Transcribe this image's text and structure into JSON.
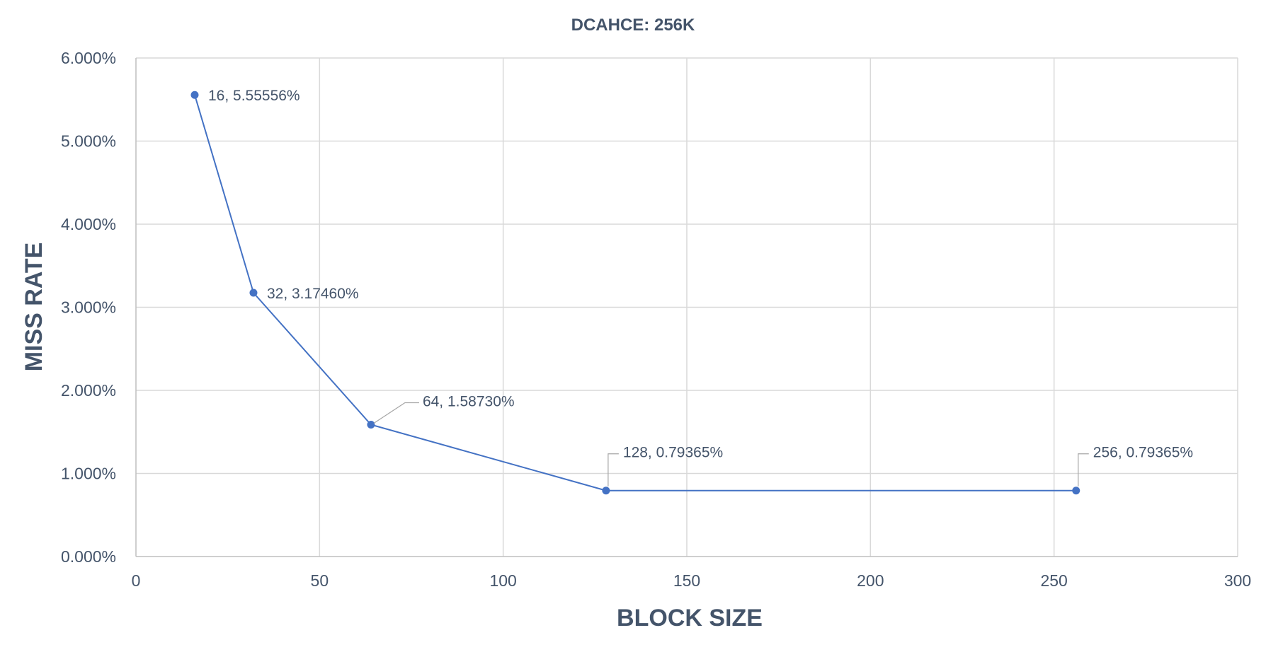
{
  "chart_data": {
    "type": "scatter",
    "title": "DCAHCE: 256K",
    "xlabel": "BLOCK SIZE",
    "ylabel": "MISS RATE",
    "xlim": [
      0,
      300
    ],
    "ylim": [
      0,
      0.06
    ],
    "x_ticks": [
      0,
      50,
      100,
      150,
      200,
      250,
      300
    ],
    "x_tick_labels": [
      "0",
      "50",
      "100",
      "150",
      "200",
      "250",
      "300"
    ],
    "y_ticks": [
      0,
      0.01,
      0.02,
      0.03,
      0.04,
      0.05,
      0.06
    ],
    "y_tick_labels": [
      "0.000%",
      "1.000%",
      "2.000%",
      "3.000%",
      "4.000%",
      "5.000%",
      "6.000%"
    ],
    "grid": true,
    "legend": "none",
    "series": [
      {
        "x": [
          16,
          32,
          64,
          128,
          256
        ],
        "y": [
          0.0555556,
          0.031746,
          0.015873,
          0.0079365,
          0.0079365
        ],
        "data_labels": [
          "16, 5.55556%",
          "32, 3.17460%",
          "64, 1.58730%",
          "128, 0.79365%",
          "256, 0.79365%"
        ],
        "color": "#4472C4"
      }
    ]
  }
}
